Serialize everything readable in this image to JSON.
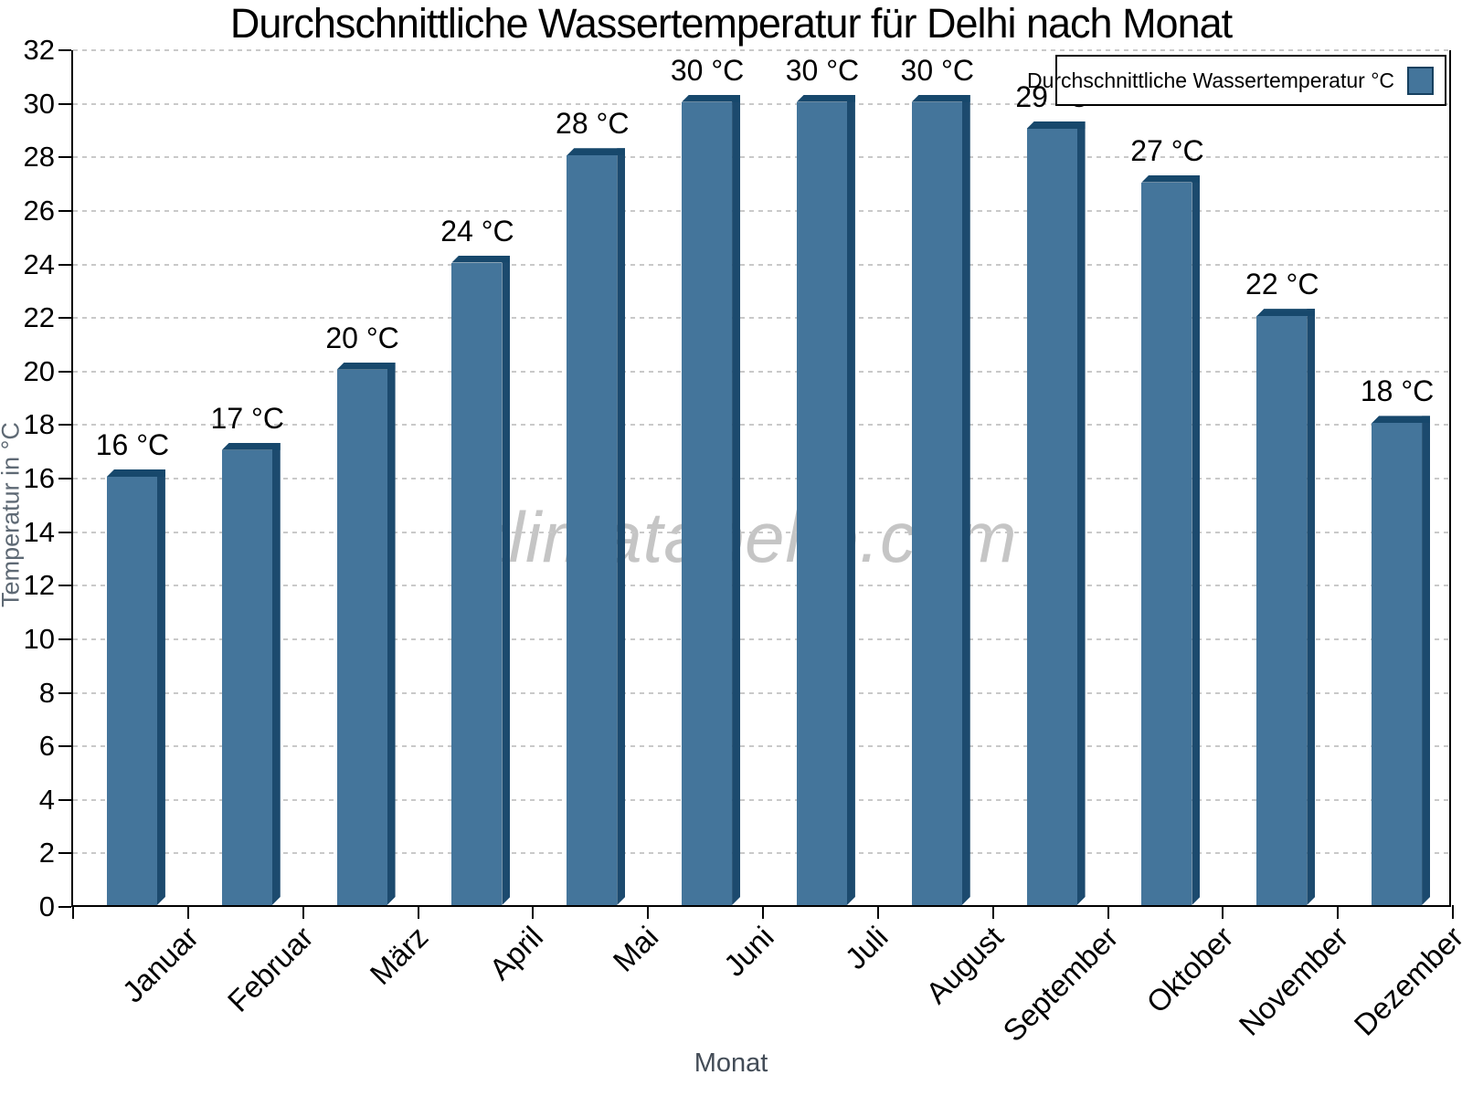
{
  "title": "Durchschnittliche Wassertemperatur für Delhi nach Monat",
  "watermark": "klimatabelle.com",
  "legend": {
    "label": "Durchschnittliche Wassertemperatur °C"
  },
  "axes": {
    "x_title": "Monat",
    "y_title": "Temperatur in °C"
  },
  "colors": {
    "bar_face": "#44759b",
    "bar_top": "#17486c",
    "bar_side": "#1c4a6e",
    "swatch_border": "#16405f",
    "grid": "#c9c9c9",
    "axis": "#000000"
  },
  "chart_data": {
    "type": "bar",
    "title": "Durchschnittliche Wassertemperatur für Delhi nach Monat",
    "xlabel": "Monat",
    "ylabel": "Temperatur in °C",
    "ylim": [
      0,
      32
    ],
    "y_step": 2,
    "grid": "dashed horizontal",
    "legend_position": "top-right inside",
    "categories": [
      "Januar",
      "Februar",
      "März",
      "April",
      "Mai",
      "Juni",
      "Juli",
      "August",
      "September",
      "Oktober",
      "November",
      "Dezember"
    ],
    "values": [
      16,
      17,
      20,
      24,
      28,
      30,
      30,
      30,
      29,
      27,
      22,
      18
    ],
    "value_labels": [
      "16 °C",
      "17 °C",
      "20 °C",
      "24 °C",
      "28 °C",
      "30 °C",
      "30 °C",
      "30 °C",
      "29 °C",
      "27 °C",
      "22 °C",
      "18 °C"
    ]
  }
}
